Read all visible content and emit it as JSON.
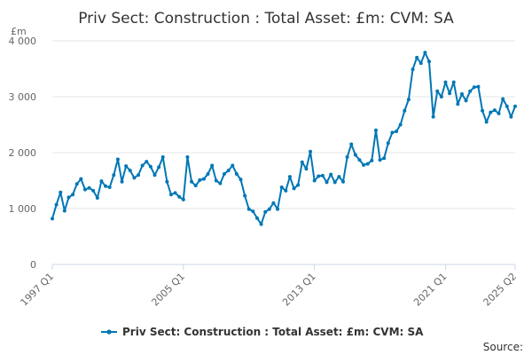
{
  "title": "Priv Sect: Construction : Total Asset: £m: CVM: SA",
  "source_label": "Source:",
  "chart_data": {
    "type": "line",
    "title": "Priv Sect: Construction : Total Asset: £m: CVM: SA",
    "ylabel": "£m",
    "xlabel": "",
    "ylim": [
      0,
      4000
    ],
    "y_ticks": [
      0,
      1000,
      2000,
      3000,
      4000
    ],
    "y_tick_labels": [
      "0",
      "1 000",
      "2 000",
      "3 000",
      "4 000"
    ],
    "x_tick_labels": [
      "1997 Q1",
      "2005 Q1",
      "2013 Q1",
      "2021 Q1",
      "2025 Q2"
    ],
    "x_tick_index": [
      0,
      32,
      64,
      96,
      113
    ],
    "grid": "horizontal",
    "legend_position": "bottom",
    "series": [
      {
        "name": "Priv Sect: Construction : Total Asset: £m: CVM: SA",
        "color": "#0077b6",
        "values": [
          820,
          1070,
          1290,
          960,
          1200,
          1250,
          1440,
          1530,
          1340,
          1370,
          1320,
          1190,
          1490,
          1400,
          1380,
          1600,
          1880,
          1480,
          1760,
          1680,
          1550,
          1600,
          1770,
          1840,
          1750,
          1600,
          1740,
          1920,
          1480,
          1250,
          1280,
          1210,
          1160,
          1920,
          1480,
          1410,
          1510,
          1530,
          1620,
          1770,
          1500,
          1450,
          1620,
          1680,
          1770,
          1620,
          1520,
          1230,
          990,
          950,
          830,
          720,
          940,
          990,
          1100,
          990,
          1380,
          1320,
          1570,
          1360,
          1420,
          1830,
          1710,
          2020,
          1500,
          1580,
          1590,
          1470,
          1610,
          1470,
          1570,
          1480,
          1920,
          2150,
          1960,
          1870,
          1780,
          1800,
          1860,
          2400,
          1870,
          1900,
          2170,
          2360,
          2380,
          2500,
          2750,
          2950,
          3490,
          3700,
          3600,
          3790,
          3630,
          2640,
          3100,
          3000,
          3260,
          3060,
          3260,
          2870,
          3050,
          2930,
          3100,
          3170,
          3180,
          2750,
          2550,
          2720,
          2760,
          2700,
          2960,
          2830,
          2640,
          2830
        ]
      }
    ]
  }
}
